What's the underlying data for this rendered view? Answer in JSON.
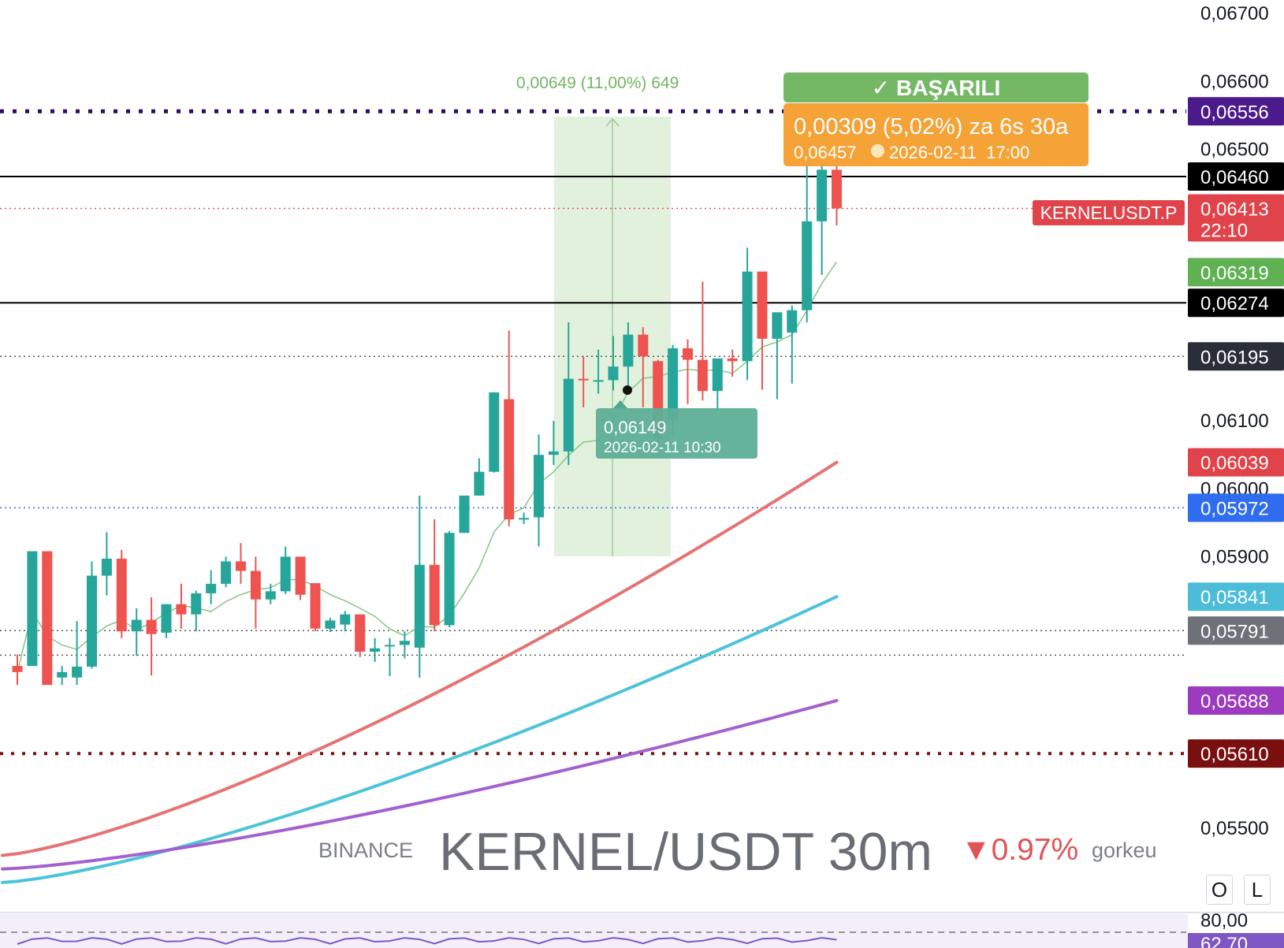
{
  "watermark": {
    "exchange": "BINANCE",
    "symbol": "KERNEL/USDT 30m",
    "change": "▼0.97%",
    "author": "gorkeu"
  },
  "buttons": {
    "o_label": "O",
    "l_label": "L"
  },
  "success_badge": "✓ BAŞARILI",
  "target_box": {
    "line1": "0,00309 (5,02%) za 6s 30a",
    "line2": "0,06457",
    "line3": "2026-02-11  17:00"
  },
  "entry_box": {
    "line1": "0,06149",
    "line2": "2026-02-11 10:30"
  },
  "range_label": "0,00649 (11,00%) 649",
  "symbol_tag": "KERNELUSDT.P",
  "countdown": "22:10",
  "colors": {
    "up": "#26a69a",
    "down": "#ef5350",
    "ma_fast": "#81c784",
    "ma_red": "#e57373",
    "ma_cyan": "#4dc3d9",
    "ma_purple": "#a361cf",
    "success": "#66bb5a",
    "target": "#f5a02e",
    "entry": "#4ca892"
  },
  "chart_data": {
    "type": "candlestick",
    "timeframe": "30m",
    "y_axis": {
      "ticks": [
        "0,06700",
        "0,06600",
        "0,06500",
        "0,06100",
        "0,06000",
        "0,05900",
        "0,05500"
      ],
      "tick_values": [
        0.067,
        0.066,
        0.065,
        0.061,
        0.06,
        0.059,
        0.055
      ]
    },
    "price_tags": [
      {
        "label": "0,06556",
        "value": 0.06556,
        "color": "#4b1a8c",
        "line": "dotted-bold"
      },
      {
        "label": "0,06460",
        "value": 0.0646,
        "color": "#000000",
        "line": "solid"
      },
      {
        "label": "0,06413",
        "sub": "22:10",
        "value": 0.06413,
        "color": "#e0434a",
        "line": "dotted-red"
      },
      {
        "label": "0,06319",
        "value": 0.06319,
        "color": "#5fb152",
        "line": "none"
      },
      {
        "label": "0,06274",
        "value": 0.06274,
        "color": "#000000",
        "line": "solid"
      },
      {
        "label": "0,06195",
        "value": 0.06195,
        "color": "#2a2e39",
        "line": "dotted-gray"
      },
      {
        "label": "0,06039",
        "value": 0.06039,
        "color": "#e0434a",
        "line": "none"
      },
      {
        "label": "0,05972",
        "value": 0.05972,
        "color": "#2f6cf0",
        "line": "dotted-blue"
      },
      {
        "label": "0,05841",
        "value": 0.05841,
        "color": "#4dbcd9",
        "line": "none"
      },
      {
        "label": "0,05791",
        "value": 0.05791,
        "color": "#6e7178",
        "line": "dotted-gray"
      },
      {
        "label": "0,05688",
        "value": 0.05688,
        "color": "#9c3bbf",
        "line": "none"
      },
      {
        "label": "0,05610",
        "value": 0.0561,
        "color": "#7a0f10",
        "line": "dotted-bold-red"
      }
    ],
    "candles": [
      [
        0.05739,
        0.05756,
        0.0573,
        0.05711
      ],
      [
        0.05739,
        0.05908,
        0.05908,
        0.05739
      ],
      [
        0.05908,
        0.05908,
        0.05711,
        0.05722
      ],
      [
        0.05722,
        0.05739,
        0.0573,
        0.05711
      ],
      [
        0.05722,
        0.05805,
        0.05738,
        0.05711
      ],
      [
        0.05738,
        0.05893,
        0.05872,
        0.05735
      ],
      [
        0.05872,
        0.05936,
        0.05897,
        0.05843
      ],
      [
        0.05897,
        0.0591,
        0.0579,
        0.0578
      ],
      [
        0.0579,
        0.05824,
        0.05807,
        0.05754
      ],
      [
        0.05807,
        0.0584,
        0.05786,
        0.05725
      ],
      [
        0.05788,
        0.0583,
        0.0583,
        0.0578
      ],
      [
        0.0583,
        0.0586,
        0.05815,
        0.05794
      ],
      [
        0.05815,
        0.0585,
        0.05846,
        0.0579
      ],
      [
        0.05846,
        0.0588,
        0.0586,
        0.0583
      ],
      [
        0.0586,
        0.059,
        0.05893,
        0.05855
      ],
      [
        0.05893,
        0.0592,
        0.05879,
        0.0586
      ],
      [
        0.05879,
        0.059,
        0.05837,
        0.05794
      ],
      [
        0.05837,
        0.0586,
        0.05849,
        0.0583
      ],
      [
        0.05849,
        0.05915,
        0.059,
        0.05845
      ],
      [
        0.059,
        0.059,
        0.05844,
        0.05836
      ],
      [
        0.05861,
        0.05861,
        0.05794,
        0.0579
      ],
      [
        0.05794,
        0.0581,
        0.05806,
        0.05789
      ],
      [
        0.058,
        0.0582,
        0.05815,
        0.0579
      ],
      [
        0.05815,
        0.0581,
        0.0576,
        0.05752
      ],
      [
        0.0576,
        0.0578,
        0.05765,
        0.05745
      ],
      [
        0.0577,
        0.0578,
        0.0577,
        0.05724
      ],
      [
        0.0577,
        0.0579,
        0.05776,
        0.0575
      ],
      [
        0.05766,
        0.0599,
        0.05888,
        0.05722
      ],
      [
        0.05888,
        0.05955,
        0.05799,
        0.0579
      ],
      [
        0.05799,
        0.05938,
        0.05935,
        0.05796
      ],
      [
        0.05935,
        0.0596,
        0.0599,
        0.05935
      ],
      [
        0.0599,
        0.06045,
        0.06025,
        0.0599
      ],
      [
        0.06025,
        0.06142,
        0.06142,
        0.06024
      ],
      [
        0.06132,
        0.06233,
        0.05955,
        0.05945
      ],
      [
        0.05955,
        0.05965,
        0.05957,
        0.05948
      ],
      [
        0.05958,
        0.0608,
        0.0605,
        0.05915
      ],
      [
        0.0605,
        0.061,
        0.06055,
        0.06035
      ],
      [
        0.06055,
        0.06245,
        0.06162,
        0.06035
      ],
      [
        0.06162,
        0.06195,
        0.0616,
        0.0612
      ],
      [
        0.0616,
        0.06205,
        0.0616,
        0.0614
      ],
      [
        0.0616,
        0.06225,
        0.0618,
        0.06145
      ],
      [
        0.0618,
        0.06245,
        0.06227,
        0.0615
      ],
      [
        0.06227,
        0.06238,
        0.06195,
        0.0612
      ],
      [
        0.06188,
        0.0619,
        0.06074,
        0.06048
      ],
      [
        0.06102,
        0.06212,
        0.06207,
        0.0608
      ],
      [
        0.06207,
        0.0622,
        0.0619,
        0.06125
      ],
      [
        0.0619,
        0.06305,
        0.06144,
        0.0613
      ],
      [
        0.06144,
        0.06188,
        0.06192,
        0.06113
      ],
      [
        0.06192,
        0.06205,
        0.06188,
        0.06165
      ],
      [
        0.06188,
        0.06355,
        0.0632,
        0.0616
      ],
      [
        0.0632,
        0.06318,
        0.06221,
        0.06146
      ],
      [
        0.06221,
        0.0625,
        0.0626,
        0.06132
      ],
      [
        0.0623,
        0.0627,
        0.06263,
        0.06155
      ],
      [
        0.06263,
        0.0649,
        0.06394,
        0.06245
      ],
      [
        0.06394,
        0.0652,
        0.0647,
        0.06315
      ],
      [
        0.0647,
        0.0651,
        0.06413,
        0.06388
      ]
    ]
  }
}
